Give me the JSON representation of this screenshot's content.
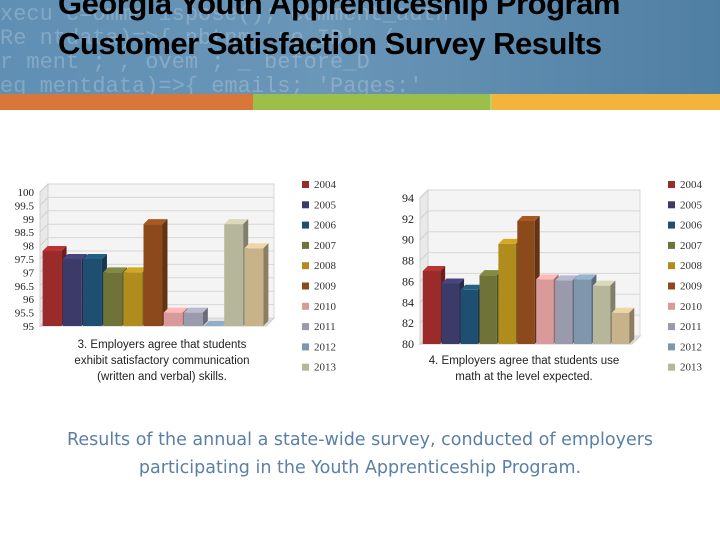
{
  "slide": {
    "title": "Georgia Youth Apprenticeship Program Customer Satisfaction Survey Results",
    "footnote": "Results of the annual a state-wide survey, conducted of employers participating in the Youth Apprenticeship Program.",
    "header_code_lines": [
      "xecu  c=omme  ispose();  comment_auth",
      "  Re    ntdata)=>{  nbtnm,  re_ID',  (",
      "   r  ment   ;  , ovem  ; _ before_D  ",
      "  eq   mentdata)=>{ emails; 'Pages:'"
    ],
    "colors": {
      "header_bg": "#5f8fb3",
      "accent_segments": [
        "#d9773b",
        "#9cbf4a",
        "#b8d36a",
        "#f2b43a"
      ],
      "footnote_text": "#5b7fa6"
    }
  },
  "chart_data": [
    {
      "type": "bar",
      "title": "3. Employers agree that students exhibit satisfactory communication (written and verbal) skills.",
      "caption_lines": [
        "3. Employers agree that students",
        "exhibit satisfactory communication",
        "(written and verbal) skills."
      ],
      "ylim": [
        95,
        100
      ],
      "yticks": [
        "100",
        "99.5",
        "99",
        "98.5",
        "98",
        "97.5",
        "97",
        "96.5",
        "96",
        "95.5",
        "95"
      ],
      "legend_position": "right",
      "grid": true,
      "series": [
        {
          "name": "2004",
          "color": "#9b2b2b",
          "value": 97.8
        },
        {
          "name": "2005",
          "color": "#3c3a68",
          "value": 97.5
        },
        {
          "name": "2006",
          "color": "#1f4f70",
          "value": 97.5
        },
        {
          "name": "2007",
          "color": "#6f7338",
          "value": 97.0
        },
        {
          "name": "2008",
          "color": "#b08c1c",
          "value": 97.0
        },
        {
          "name": "2009",
          "color": "#8c4a1c",
          "value": 98.8
        },
        {
          "name": "2010",
          "color": "#d99a9a",
          "value": 95.5
        },
        {
          "name": "2011",
          "color": "#9a9aad",
          "value": 95.5
        },
        {
          "name": "2012",
          "color": "#7f97ad",
          "value": 95.0
        },
        {
          "name": "2013",
          "color": "#b6b69a",
          "value": 98.8
        },
        {
          "name": "",
          "color": "#c8b28a",
          "value": 97.9
        }
      ]
    },
    {
      "type": "bar",
      "title": "4. Employers agree that students use math at the level expected.",
      "caption_lines": [
        "4. Employers agree that students use",
        "math at the level expected."
      ],
      "ylim": [
        80,
        94
      ],
      "yticks": [
        "94",
        "92",
        "90",
        "88",
        "86",
        "84",
        "82",
        "80"
      ],
      "legend_position": "right",
      "grid": true,
      "series": [
        {
          "name": "2004",
          "color": "#9b2b2b",
          "value": 87.0
        },
        {
          "name": "2005",
          "color": "#3c3a68",
          "value": 85.8
        },
        {
          "name": "2006",
          "color": "#1f4f70",
          "value": 85.2
        },
        {
          "name": "2007",
          "color": "#6f7338",
          "value": 86.6
        },
        {
          "name": "2008",
          "color": "#b08c1c",
          "value": 89.6
        },
        {
          "name": "2009",
          "color": "#8c4a1c",
          "value": 91.8
        },
        {
          "name": "2010",
          "color": "#d99a9a",
          "value": 86.2
        },
        {
          "name": "2011",
          "color": "#9a9aad",
          "value": 86.1
        },
        {
          "name": "2012",
          "color": "#7f97ad",
          "value": 86.2
        },
        {
          "name": "2013",
          "color": "#b6b69a",
          "value": 85.6
        },
        {
          "name": "",
          "color": "#c8b28a",
          "value": 83.0
        }
      ]
    }
  ]
}
